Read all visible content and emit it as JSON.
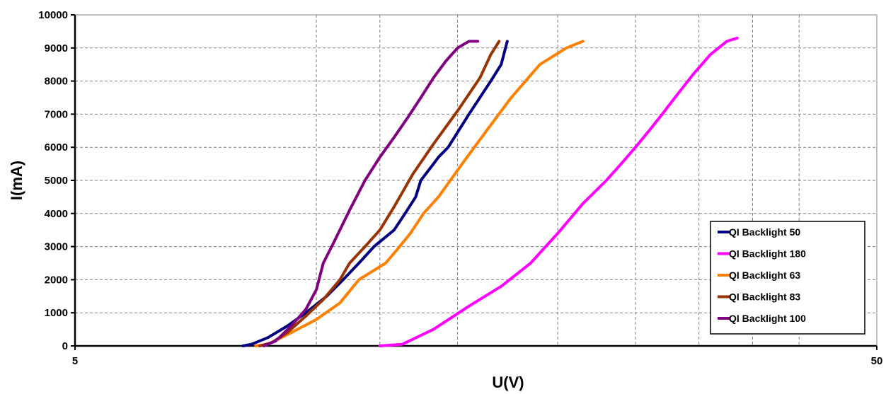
{
  "chart_data": {
    "type": "line",
    "xlabel": "U(V)",
    "ylabel": "I(mA)",
    "xscale": "log",
    "xlim": [
      5,
      50
    ],
    "ylim": [
      0,
      10000
    ],
    "x_tick_labels": [
      "5",
      "50"
    ],
    "y_ticks": [
      0,
      1000,
      2000,
      3000,
      4000,
      5000,
      6000,
      7000,
      8000,
      9000,
      10000
    ],
    "y_tick_labels": [
      "0",
      "1000",
      "2000",
      "3000",
      "4000",
      "5000",
      "6000",
      "7000",
      "8000",
      "9000",
      "10000"
    ],
    "x_gridlines": [
      10,
      12,
      15,
      20,
      25,
      30,
      35,
      40
    ],
    "grid": true,
    "legend_position": "bottom-right",
    "series": [
      {
        "name": "QI Backlight 50",
        "color": "#000080",
        "x": [
          8.1,
          8.3,
          8.7,
          9.2,
          9.7,
          10.3,
          10.8,
          11.3,
          11.8,
          12.5,
          12.9,
          13.3,
          13.5,
          14.0,
          14.2,
          14.6,
          15.5,
          16.5,
          17.0,
          17.3
        ],
        "y": [
          0,
          50,
          250,
          600,
          1000,
          1500,
          2000,
          2500,
          3000,
          3500,
          4000,
          4500,
          5000,
          5500,
          5700,
          6000,
          7000,
          8000,
          8500,
          9200
        ]
      },
      {
        "name": "QI Backlight 180",
        "color": "#FF00FF",
        "x": [
          12.0,
          12.8,
          14.0,
          15.5,
          17.0,
          18.5,
          20.0,
          21.5,
          23.0,
          24.0,
          25.0,
          26.0,
          27.0,
          28.0,
          29.5,
          31.0,
          32.5,
          33.5
        ],
        "y": [
          0,
          50,
          500,
          1200,
          1800,
          2500,
          3400,
          4300,
          5000,
          5500,
          6000,
          6500,
          7000,
          7500,
          8200,
          8800,
          9200,
          9300
        ]
      },
      {
        "name": "QI Backlight 63",
        "color": "#FF8000",
        "x": [
          8.4,
          8.7,
          9.3,
          10.0,
          10.7,
          11.3,
          12.2,
          12.6,
          13.1,
          13.6,
          14.2,
          15.2,
          16.3,
          17.5,
          19.0,
          20.5,
          21.5
        ],
        "y": [
          0,
          50,
          400,
          800,
          1300,
          2000,
          2500,
          2900,
          3400,
          4000,
          4500,
          5500,
          6500,
          7500,
          8500,
          9000,
          9200
        ]
      },
      {
        "name": "QI Backlight 83",
        "color": "#993300",
        "x": [
          8.5,
          8.8,
          9.2,
          9.7,
          10.2,
          10.7,
          11.0,
          11.5,
          12.0,
          12.5,
          13.2,
          14.0,
          15.0,
          16.0,
          16.5,
          16.9
        ],
        "y": [
          0,
          100,
          400,
          900,
          1400,
          2000,
          2500,
          3000,
          3500,
          4200,
          5200,
          6100,
          7100,
          8100,
          8800,
          9200
        ]
      },
      {
        "name": "QI Backlight 100",
        "color": "#800080",
        "x": [
          8.6,
          8.9,
          9.3,
          9.7,
          10.0,
          10.2,
          10.5,
          11.0,
          11.5,
          12.0,
          12.5,
          13.0,
          13.5,
          14.0,
          14.5,
          15.0,
          15.5,
          15.9
        ],
        "y": [
          0,
          150,
          600,
          1100,
          1700,
          2500,
          3100,
          4100,
          5000,
          5700,
          6300,
          6900,
          7500,
          8100,
          8600,
          9000,
          9200,
          9200
        ]
      }
    ]
  }
}
